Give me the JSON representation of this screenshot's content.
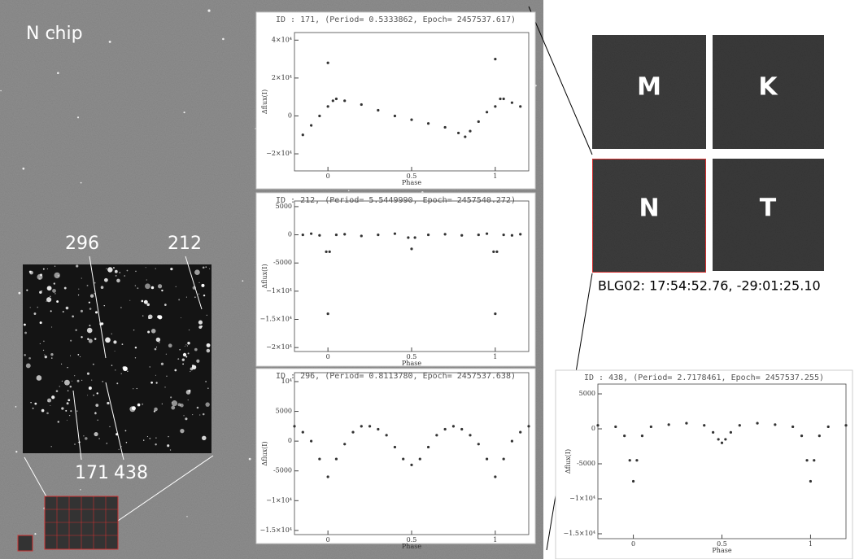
{
  "image": {
    "title": "N chip",
    "star_labels": [
      "296",
      "212",
      "171",
      "438"
    ],
    "tiles": [
      "M",
      "K",
      "N",
      "T"
    ],
    "caption": "BLG02: 17:54:52.76, -29:01:25.10"
  },
  "chart_data": [
    {
      "type": "scatter",
      "title": "ID : 171, (Period= 0.5333862, Epoch= 2457537.617)",
      "xlabel": "Phase",
      "ylabel": "Δflux(I)",
      "color": "#333333",
      "xlim": [
        -0.2,
        1.2
      ],
      "xticks": [
        0,
        0.5,
        1
      ],
      "ylim": [
        -29000,
        44000
      ],
      "yticks": [
        {
          "value": -20000,
          "label": "−2×10⁴"
        },
        0,
        {
          "value": 20000,
          "label": "2×10⁴"
        },
        {
          "value": 40000,
          "label": "4×10⁴"
        }
      ],
      "x": [
        -0.15,
        -0.1,
        -0.05,
        0,
        0.03,
        0.05,
        0.1,
        0.2,
        0.3,
        0.4,
        0.5,
        0.6,
        0.7,
        0.78,
        0.82,
        0.85,
        0.9,
        0.95,
        1.0,
        1.03,
        1.05,
        1.1,
        1.15,
        0.0,
        1.0
      ],
      "values": [
        -10000,
        -5000,
        0,
        5000,
        8000,
        9000,
        8000,
        6000,
        3000,
        0,
        -2000,
        -4000,
        -6000,
        -9000,
        -11000,
        -8000,
        -3000,
        2000,
        5000,
        9000,
        9000,
        7000,
        5000,
        28000,
        30000
      ]
    },
    {
      "type": "scatter",
      "title": "ID : 212, (Period= 5.5449990, Epoch= 2457540.272)",
      "xlabel": "Phase",
      "ylabel": "Δflux(I)",
      "color": "#333333",
      "xlim": [
        -0.2,
        1.2
      ],
      "xticks": [
        0,
        0.5,
        1
      ],
      "ylim": [
        -20700,
        6000
      ],
      "yticks": [
        {
          "value": -20000,
          "label": "−2×10⁴"
        },
        {
          "value": -15000,
          "label": "−1.5×10⁴"
        },
        {
          "value": -10000,
          "label": "−1×10⁴"
        },
        -5000,
        0,
        5000
      ],
      "x": [
        -0.15,
        -0.1,
        -0.05,
        -0.01,
        0,
        0.01,
        0.05,
        0.1,
        0.2,
        0.3,
        0.4,
        0.48,
        0.5,
        0.52,
        0.6,
        0.7,
        0.8,
        0.9,
        0.95,
        0.99,
        1.0,
        1.01,
        1.05,
        1.1,
        1.15
      ],
      "values": [
        0,
        200,
        -100,
        -3000,
        -14000,
        -3000,
        0,
        100,
        -200,
        0,
        200,
        -500,
        -2500,
        -500,
        0,
        100,
        -100,
        0,
        200,
        -3000,
        -14000,
        -3000,
        0,
        -100,
        100
      ]
    },
    {
      "type": "scatter",
      "title": "ID : 296, (Period= 0.8113780, Epoch= 2457537.638)",
      "xlabel": "Phase",
      "ylabel": "Δflux(I)",
      "color": "#333333",
      "xlim": [
        -0.2,
        1.2
      ],
      "xticks": [
        0,
        0.5,
        1
      ],
      "ylim": [
        -15700,
        11500
      ],
      "yticks": [
        {
          "value": -15000,
          "label": "−1.5×10⁴"
        },
        {
          "value": -10000,
          "label": "−1×10⁴"
        },
        -5000,
        0,
        5000,
        {
          "value": 10000,
          "label": "10⁴"
        }
      ],
      "x": [
        -0.2,
        -0.15,
        -0.1,
        -0.05,
        0,
        0.05,
        0.1,
        0.15,
        0.2,
        0.25,
        0.3,
        0.35,
        0.4,
        0.45,
        0.5,
        0.55,
        0.6,
        0.65,
        0.7,
        0.75,
        0.8,
        0.85,
        0.9,
        0.95,
        1,
        1.05,
        1.1,
        1.15,
        1.2
      ],
      "values": [
        2500,
        1500,
        0,
        -3000,
        -6000,
        -3000,
        -500,
        1500,
        2500,
        2500,
        2000,
        1000,
        -1000,
        -3000,
        -4000,
        -3000,
        -1000,
        1000,
        2000,
        2500,
        2000,
        1000,
        -500,
        -3000,
        -6000,
        -3000,
        0,
        1500,
        2500
      ]
    },
    {
      "type": "scatter",
      "title": "ID : 438, (Period= 2.7178461, Epoch= 2457537.255)",
      "xlabel": "Phase",
      "ylabel": "Δflux(I)",
      "color": "#333333",
      "xlim": [
        -0.2,
        1.2
      ],
      "xticks": [
        0,
        0.5,
        1
      ],
      "ylim": [
        -15700,
        6400
      ],
      "yticks": [
        {
          "value": -15000,
          "label": "−1.5×10⁴"
        },
        {
          "value": -10000,
          "label": "−1×10⁴"
        },
        -5000,
        0,
        5000
      ],
      "x": [
        -0.2,
        -0.1,
        -0.05,
        -0.02,
        0,
        0.02,
        0.05,
        0.1,
        0.2,
        0.3,
        0.4,
        0.45,
        0.48,
        0.5,
        0.52,
        0.55,
        0.6,
        0.7,
        0.8,
        0.9,
        0.95,
        0.98,
        1,
        1.02,
        1.05,
        1.1,
        1.2
      ],
      "values": [
        500,
        300,
        -1000,
        -4500,
        -7500,
        -4500,
        -1000,
        300,
        600,
        800,
        500,
        -500,
        -1500,
        -2000,
        -1500,
        -500,
        500,
        800,
        600,
        300,
        -1000,
        -4500,
        -7500,
        -4500,
        -1000,
        300,
        500
      ]
    }
  ]
}
